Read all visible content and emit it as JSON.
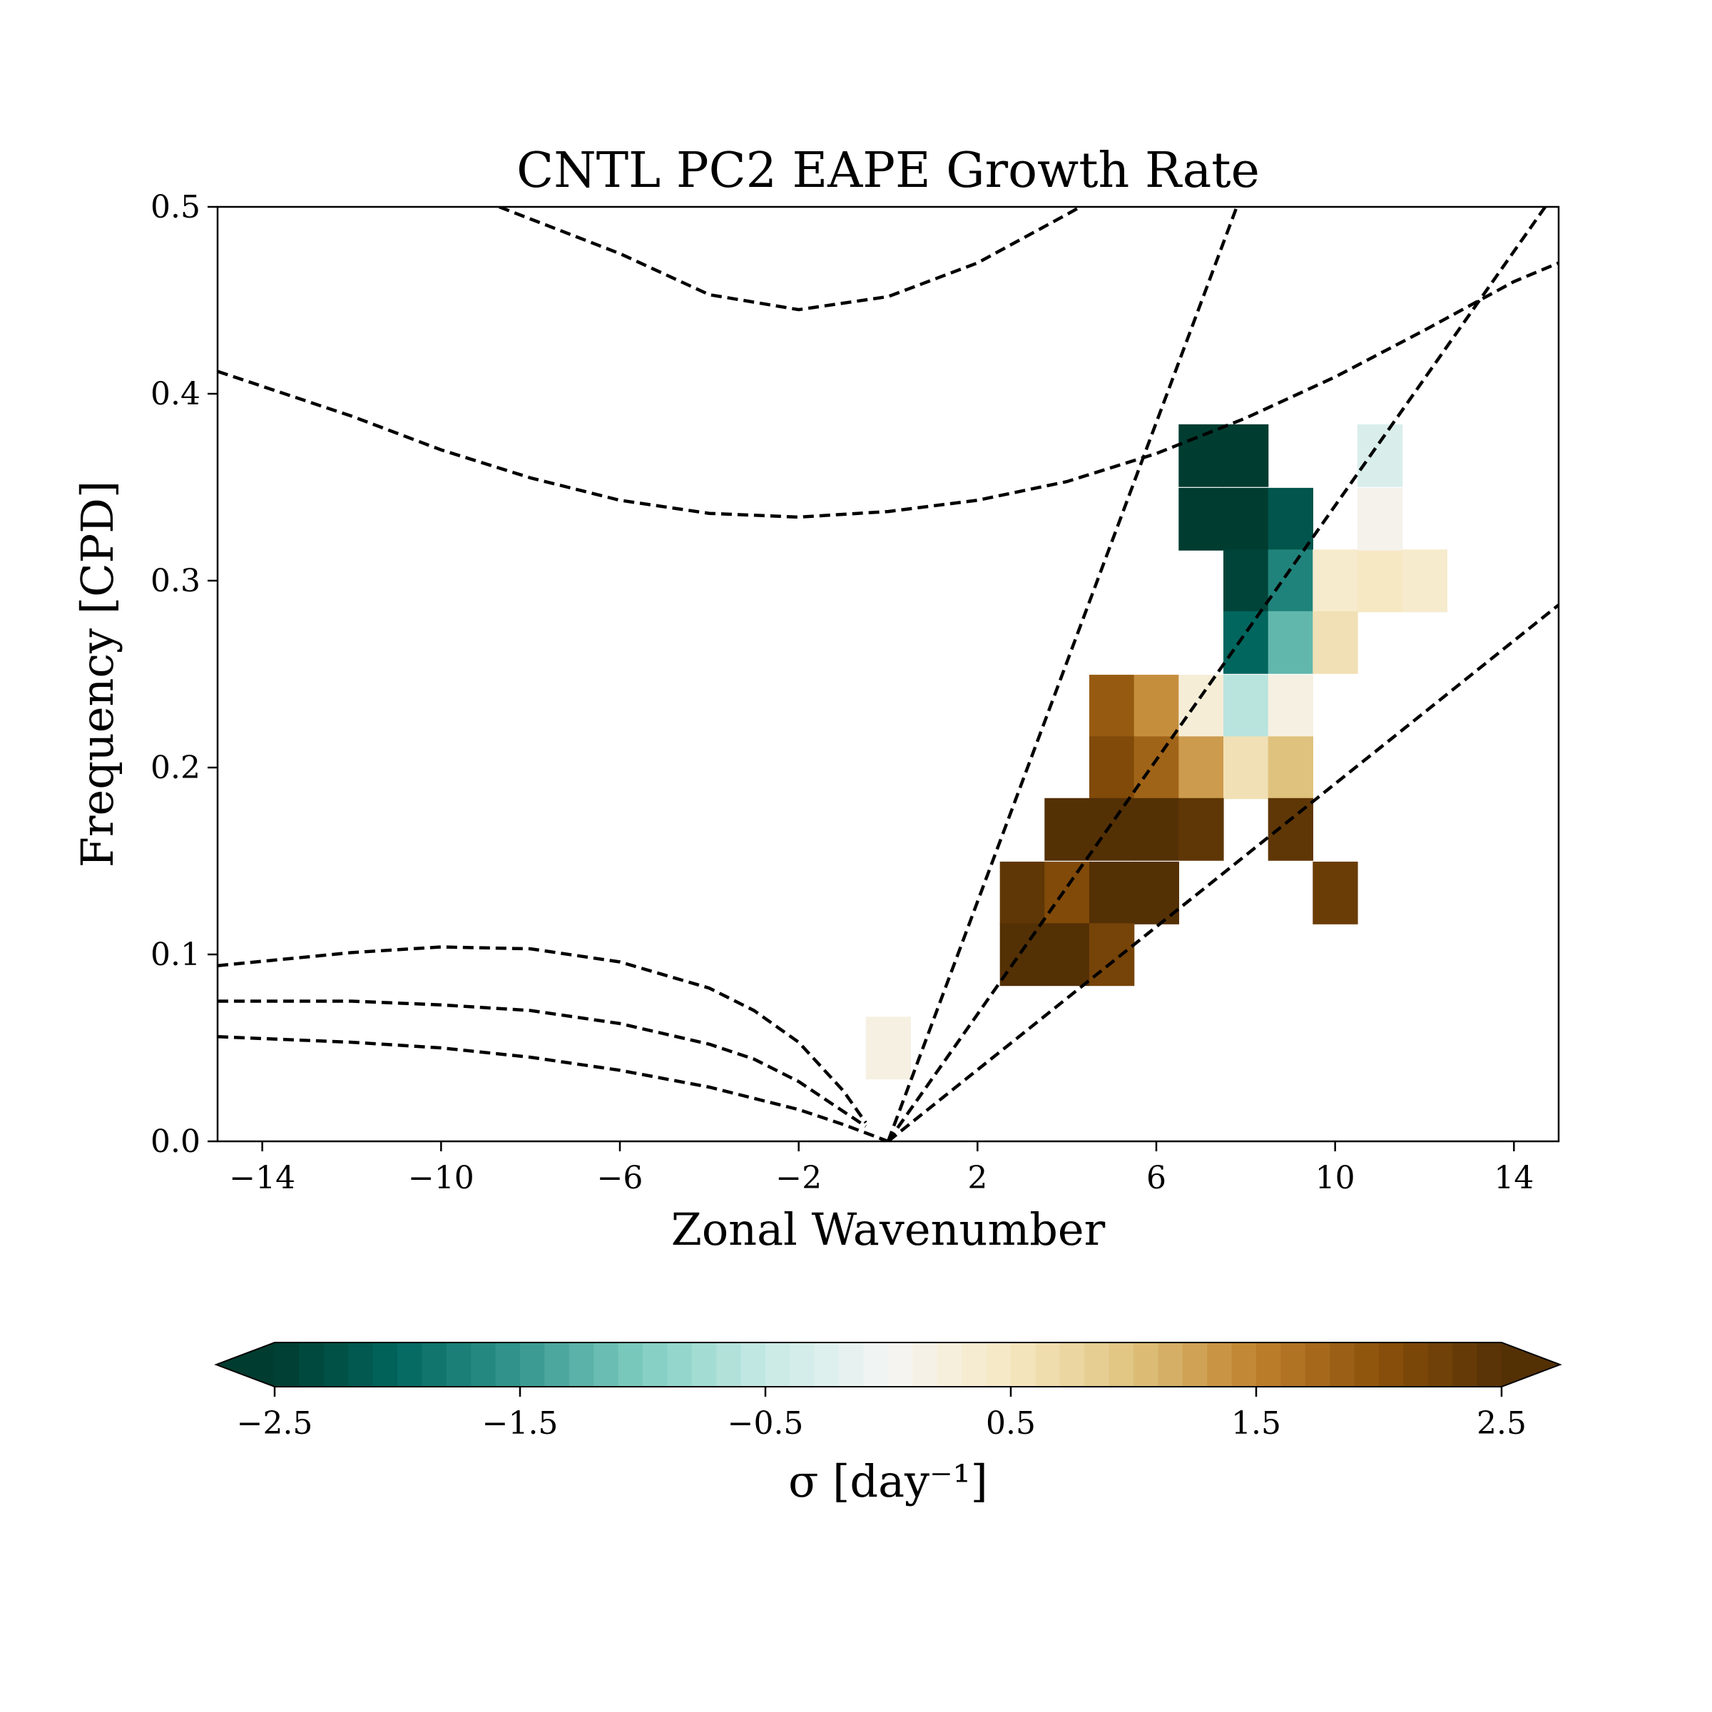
{
  "chart_data": {
    "type": "heatmap",
    "title": "CNTL PC2 EAPE Growth Rate",
    "xlabel": "Zonal Wavenumber",
    "ylabel": "Frequency [CPD]",
    "xlim": [
      -15,
      15
    ],
    "ylim": [
      0,
      0.5
    ],
    "xticks": [
      -14,
      -10,
      -6,
      -2,
      2,
      6,
      10,
      14
    ],
    "xtick_labels": [
      "−14",
      "−10",
      "−6",
      "−2",
      "2",
      "6",
      "10",
      "14"
    ],
    "yticks": [
      0.0,
      0.1,
      0.2,
      0.3,
      0.4,
      0.5
    ],
    "ytick_labels": [
      "0.0",
      "0.1",
      "0.2",
      "0.3",
      "0.4",
      "0.5"
    ],
    "colorbar": {
      "label": "σ [day⁻¹]",
      "vmin": -2.5,
      "vmax": 2.5,
      "levels": 50,
      "extend": "both",
      "colormap": "BrBG_r",
      "ticks": [
        -2.5,
        -1.5,
        -0.5,
        0.5,
        1.5,
        2.5
      ],
      "tick_labels": [
        "−2.5",
        "−1.5",
        "−0.5",
        "0.5",
        "1.5",
        "2.5"
      ]
    },
    "cells": [
      {
        "k": 7,
        "f": 0.367,
        "v": -2.8
      },
      {
        "k": 8,
        "f": 0.367,
        "v": -2.8
      },
      {
        "k": 7,
        "f": 0.333,
        "v": -2.8
      },
      {
        "k": 8,
        "f": 0.333,
        "v": -2.7
      },
      {
        "k": 9,
        "f": 0.333,
        "v": -2.2
      },
      {
        "k": 8,
        "f": 0.3,
        "v": -2.4
      },
      {
        "k": 9,
        "f": 0.3,
        "v": -1.7
      },
      {
        "k": 10,
        "f": 0.3,
        "v": 0.4
      },
      {
        "k": 11,
        "f": 0.3,
        "v": 0.5
      },
      {
        "k": 12,
        "f": 0.3,
        "v": 0.4
      },
      {
        "k": 11,
        "f": 0.333,
        "v": 0.1
      },
      {
        "k": 11,
        "f": 0.367,
        "v": -0.3
      },
      {
        "k": 8,
        "f": 0.267,
        "v": -2.0
      },
      {
        "k": 9,
        "f": 0.267,
        "v": -1.2
      },
      {
        "k": 10,
        "f": 0.267,
        "v": 0.6
      },
      {
        "k": 5,
        "f": 0.233,
        "v": 1.9
      },
      {
        "k": 6,
        "f": 0.233,
        "v": 1.4
      },
      {
        "k": 7,
        "f": 0.233,
        "v": 0.3
      },
      {
        "k": 8,
        "f": 0.233,
        "v": -0.6
      },
      {
        "k": 9,
        "f": 0.233,
        "v": 0.2
      },
      {
        "k": 5,
        "f": 0.2,
        "v": 2.1
      },
      {
        "k": 6,
        "f": 0.2,
        "v": 1.8
      },
      {
        "k": 7,
        "f": 0.2,
        "v": 1.3
      },
      {
        "k": 8,
        "f": 0.2,
        "v": 0.6
      },
      {
        "k": 9,
        "f": 0.2,
        "v": 1.0
      },
      {
        "k": 4,
        "f": 0.167,
        "v": 2.5
      },
      {
        "k": 5,
        "f": 0.167,
        "v": 2.6
      },
      {
        "k": 6,
        "f": 0.167,
        "v": 2.7
      },
      {
        "k": 7,
        "f": 0.167,
        "v": 2.4
      },
      {
        "k": 9,
        "f": 0.167,
        "v": 2.4
      },
      {
        "k": 3,
        "f": 0.133,
        "v": 2.4
      },
      {
        "k": 4,
        "f": 0.133,
        "v": 2.1
      },
      {
        "k": 5,
        "f": 0.133,
        "v": 2.5
      },
      {
        "k": 6,
        "f": 0.133,
        "v": 2.8
      },
      {
        "k": 10,
        "f": 0.133,
        "v": 2.3
      },
      {
        "k": 3,
        "f": 0.1,
        "v": 2.7
      },
      {
        "k": 4,
        "f": 0.1,
        "v": 2.5
      },
      {
        "k": 5,
        "f": 0.1,
        "v": 2.2
      },
      {
        "k": 0,
        "f": 0.05,
        "v": 0.2
      }
    ],
    "dispersion_curves": [
      {
        "points": [
          [
            -8.7,
            0.5
          ],
          [
            -6,
            0.475
          ],
          [
            -4,
            0.453
          ],
          [
            -2,
            0.445
          ],
          [
            0,
            0.452
          ],
          [
            2,
            0.47
          ],
          [
            4,
            0.496
          ],
          [
            4.3,
            0.5
          ]
        ]
      },
      {
        "points": [
          [
            -15,
            0.412
          ],
          [
            -12,
            0.388
          ],
          [
            -10,
            0.37
          ],
          [
            -8,
            0.355
          ],
          [
            -6,
            0.343
          ],
          [
            -4,
            0.336
          ],
          [
            -2,
            0.334
          ],
          [
            0,
            0.337
          ],
          [
            2,
            0.343
          ],
          [
            4,
            0.353
          ],
          [
            6,
            0.368
          ],
          [
            8,
            0.387
          ],
          [
            10,
            0.409
          ],
          [
            12,
            0.434
          ],
          [
            14,
            0.46
          ],
          [
            15,
            0.47
          ]
        ]
      },
      {
        "points": [
          [
            -15,
            0.094
          ],
          [
            -12,
            0.101
          ],
          [
            -10,
            0.104
          ],
          [
            -8,
            0.103
          ],
          [
            -6,
            0.096
          ],
          [
            -4,
            0.082
          ],
          [
            -3,
            0.07
          ],
          [
            -2,
            0.053
          ],
          [
            -1,
            0.027
          ],
          [
            -0.5,
            0.01
          ]
        ]
      },
      {
        "points": [
          [
            -15,
            0.075
          ],
          [
            -12,
            0.075
          ],
          [
            -10,
            0.073
          ],
          [
            -8,
            0.07
          ],
          [
            -6,
            0.063
          ],
          [
            -4,
            0.052
          ],
          [
            -3,
            0.044
          ],
          [
            -2,
            0.032
          ],
          [
            -1,
            0.016
          ],
          [
            -0.5,
            0.008
          ]
        ]
      },
      {
        "points": [
          [
            -15,
            0.056
          ],
          [
            -12,
            0.053
          ],
          [
            -10,
            0.05
          ],
          [
            -8,
            0.045
          ],
          [
            -6,
            0.038
          ],
          [
            -4,
            0.029
          ],
          [
            -2,
            0.017
          ],
          [
            -1,
            0.009
          ],
          [
            0,
            0
          ]
        ]
      },
      {
        "points": [
          [
            0,
            0
          ],
          [
            7.8,
            0.5
          ]
        ]
      },
      {
        "points": [
          [
            0,
            0
          ],
          [
            14.7,
            0.5
          ]
        ]
      },
      {
        "points": [
          [
            0,
            0
          ],
          [
            15,
            0.287
          ]
        ]
      }
    ]
  }
}
